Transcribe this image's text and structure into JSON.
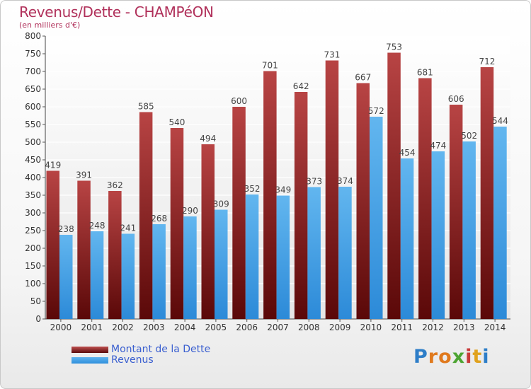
{
  "title": "Revenus/Dette - CHAMPéON",
  "subtitle": "(en milliers d'€)",
  "legend": {
    "dette_label": "Montant de la Dette",
    "revenus_label": "Revenus"
  },
  "logo": {
    "letters": [
      "P",
      "r",
      "o",
      "x",
      "i",
      "t",
      "i"
    ],
    "colors": [
      "#2e7ec8",
      "#e07a1e",
      "#e07a1e",
      "#4da432",
      "#c93a3a",
      "#e0a21e",
      "#2e7ec8"
    ]
  },
  "colors": {
    "dette_top": "#b84444",
    "dette_bottom": "#5a0808",
    "revenus_top": "#62b6ef",
    "revenus_bottom": "#2c8ad8",
    "title": "#b0305a",
    "legend_text": "#3a5fd0"
  },
  "chart_data": {
    "type": "bar",
    "categories": [
      "2000",
      "2001",
      "2002",
      "2003",
      "2004",
      "2005",
      "2006",
      "2007",
      "2008",
      "2009",
      "2010",
      "2011",
      "2012",
      "2013",
      "2014"
    ],
    "series": [
      {
        "name": "Montant de la Dette",
        "values": [
          419,
          391,
          362,
          585,
          540,
          494,
          600,
          701,
          642,
          731,
          667,
          753,
          681,
          606,
          712
        ]
      },
      {
        "name": "Revenus",
        "values": [
          238,
          248,
          241,
          268,
          290,
          309,
          352,
          349,
          373,
          374,
          572,
          454,
          474,
          502,
          544
        ]
      }
    ],
    "ylim": [
      0,
      800
    ],
    "yticks": [
      0,
      50,
      100,
      150,
      200,
      250,
      300,
      350,
      400,
      450,
      500,
      550,
      600,
      650,
      700,
      750,
      800
    ],
    "grid": true,
    "legend_position": "bottom-left"
  }
}
